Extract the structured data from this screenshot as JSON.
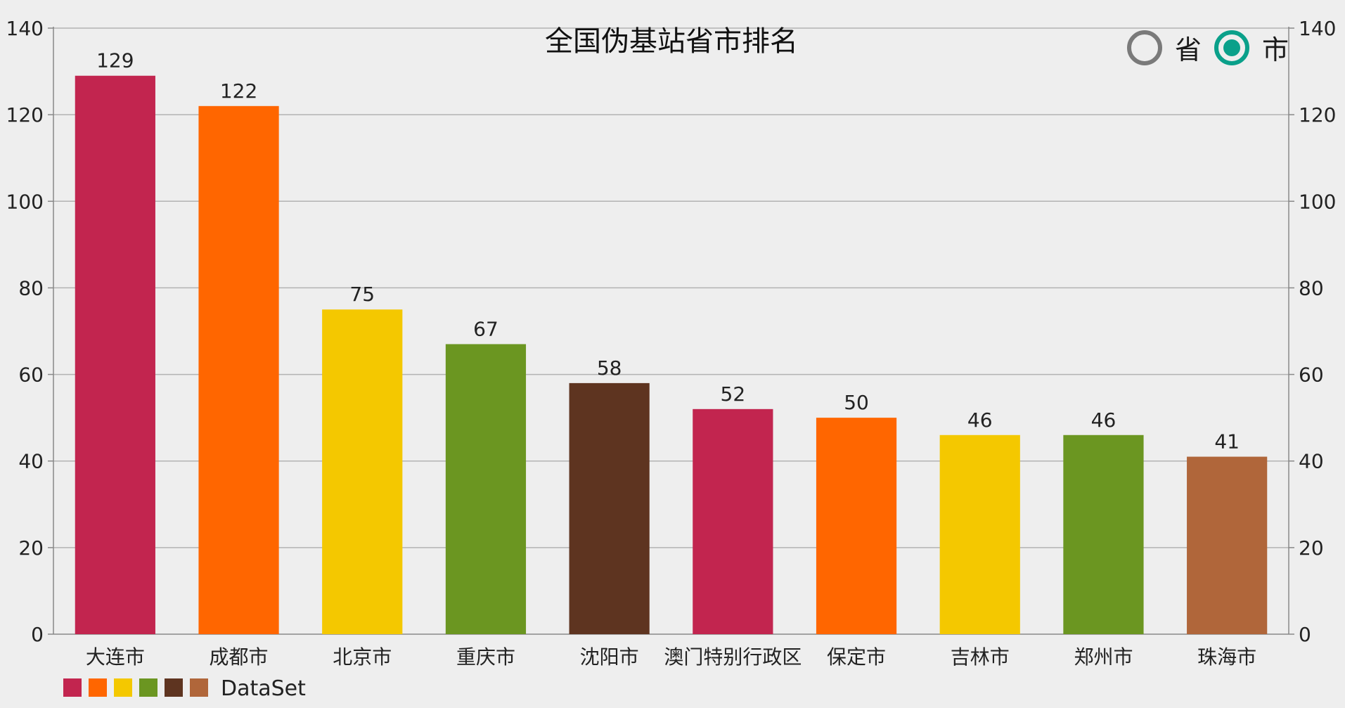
{
  "chart_data": {
    "type": "bar",
    "title": "全国伪基站省市排名",
    "categories": [
      "大连市",
      "成都市",
      "北京市",
      "重庆市",
      "沈阳市",
      "澳门特别行政区",
      "保定市",
      "吉林市",
      "郑州市",
      "珠海市"
    ],
    "values": [
      129,
      122,
      75,
      67,
      58,
      52,
      50,
      46,
      46,
      41
    ],
    "ylim": [
      0,
      140
    ],
    "yticks": [
      0,
      20,
      40,
      60,
      80,
      100,
      120,
      140
    ],
    "grid": true,
    "dual_y_axis": true,
    "legend": {
      "label": "DataSet",
      "position": "bottom-left"
    },
    "colors": [
      "#c2254f",
      "#ff6600",
      "#f4c800",
      "#6b9621",
      "#5e3420",
      "#b0663a"
    ],
    "bar_colors": [
      "#c2254f",
      "#ff6600",
      "#f4c800",
      "#6b9621",
      "#5e3420",
      "#c2254f",
      "#ff6600",
      "#f4c800",
      "#6b9621",
      "#b0663a"
    ]
  },
  "toggle": {
    "options": [
      {
        "label": "省",
        "selected": false
      },
      {
        "label": "市",
        "selected": true
      }
    ],
    "accent_color": "#0aa08a"
  }
}
